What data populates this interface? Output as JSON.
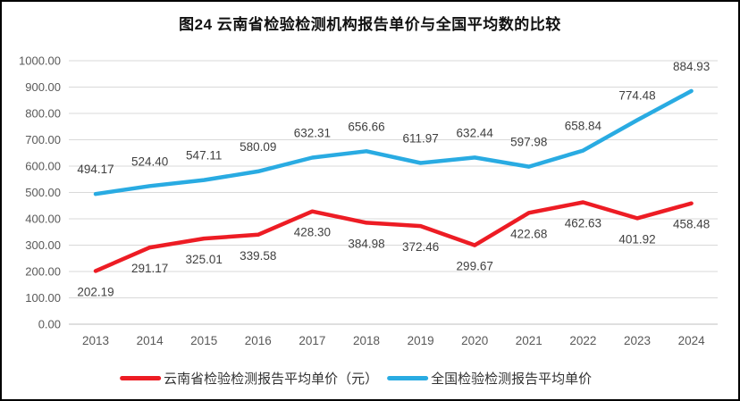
{
  "figure": {
    "title": "图24 云南省检验检测机构报告单价与全国平均数的比较"
  },
  "chart_data": {
    "type": "line",
    "title": "图24 云南省检验检测机构报告单价与全国平均数的比较",
    "categories": [
      "2013",
      "2014",
      "2015",
      "2016",
      "2017",
      "2018",
      "2019",
      "2020",
      "2021",
      "2022",
      "2023",
      "2024"
    ],
    "series": [
      {
        "name": "云南省检验检测报告平均单价（元）",
        "color": "#ED1C24",
        "label_position": "below",
        "values": [
          202.19,
          291.17,
          325.01,
          339.58,
          428.3,
          384.98,
          372.46,
          299.67,
          422.68,
          462.63,
          401.92,
          458.48
        ]
      },
      {
        "name": "全国检验检测报告平均单价",
        "color": "#29ABE2",
        "label_position": "above",
        "values": [
          494.17,
          524.4,
          547.11,
          580.09,
          632.31,
          656.66,
          611.97,
          632.44,
          597.98,
          658.84,
          774.48,
          884.93
        ]
      }
    ],
    "xlabel": "",
    "ylabel": "",
    "ylim": [
      0,
      1000
    ],
    "ytick_step": 100,
    "ytick_labels": [
      "0.00",
      "100.00",
      "200.00",
      "300.00",
      "400.00",
      "500.00",
      "600.00",
      "700.00",
      "800.00",
      "900.00",
      "1000.00"
    ],
    "grid": true,
    "gridline_color": "#D9D9D9",
    "axis_line_color": "#BFBFBF",
    "axis_text_color": "#595959",
    "data_label_color": "#404040",
    "legend_position": "bottom",
    "data_labels_shown": true
  }
}
